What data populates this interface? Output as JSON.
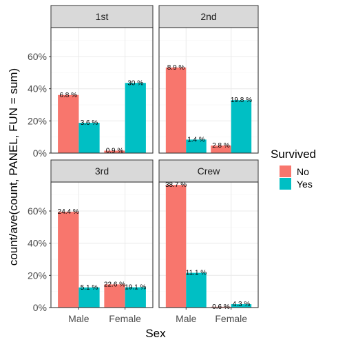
{
  "chart_data": {
    "type": "bar",
    "layout": "facet_wrap",
    "xlabel": "Sex",
    "ylabel": "count/ave(count, PANEL, FUN = sum)",
    "ylim": [
      0,
      0.78
    ],
    "yticks": [
      0,
      0.2,
      0.4,
      0.6
    ],
    "ytick_labels": [
      "0%",
      "20%",
      "40%",
      "60%"
    ],
    "categories": [
      "Male",
      "Female"
    ],
    "legend": {
      "title": "Survived",
      "placement": "right",
      "entries": [
        {
          "name": "No",
          "color": "#F8766D"
        },
        {
          "name": "Yes",
          "color": "#00BFC4"
        }
      ]
    },
    "grid": true,
    "panels": [
      {
        "title": "1st",
        "series": [
          {
            "name": "No",
            "values": [
              0.361,
              0.015
            ],
            "labels": [
              "6.8 %",
              "0.9 %"
            ]
          },
          {
            "name": "Yes",
            "values": [
              0.188,
              0.436
            ],
            "labels": [
              "3.6 %",
              "30 %"
            ]
          }
        ]
      },
      {
        "title": "2nd",
        "series": [
          {
            "name": "No",
            "values": [
              0.532,
              0.047
            ],
            "labels": [
              "8.9 %",
              "2.8 %"
            ]
          },
          {
            "name": "Yes",
            "values": [
              0.084,
              0.329
            ],
            "labels": [
              "1.4 %",
              "19.8 %"
            ]
          }
        ]
      },
      {
        "title": "3rd",
        "series": [
          {
            "name": "No",
            "values": [
              0.595,
              0.144
            ],
            "labels": [
              "24.4 %",
              "22.6 %"
            ]
          },
          {
            "name": "Yes",
            "values": [
              0.125,
              0.126
            ],
            "labels": [
              "5.1 %",
              "19.1 %"
            ]
          }
        ]
      },
      {
        "title": "Crew",
        "series": [
          {
            "name": "No",
            "values": [
              0.762,
              0.005
            ],
            "labels": [
              "38.7 %",
              "0.6 %"
            ]
          },
          {
            "name": "Yes",
            "values": [
              0.216,
              0.021
            ],
            "labels": [
              "11.1 %",
              "4.3 %"
            ]
          }
        ]
      }
    ]
  }
}
